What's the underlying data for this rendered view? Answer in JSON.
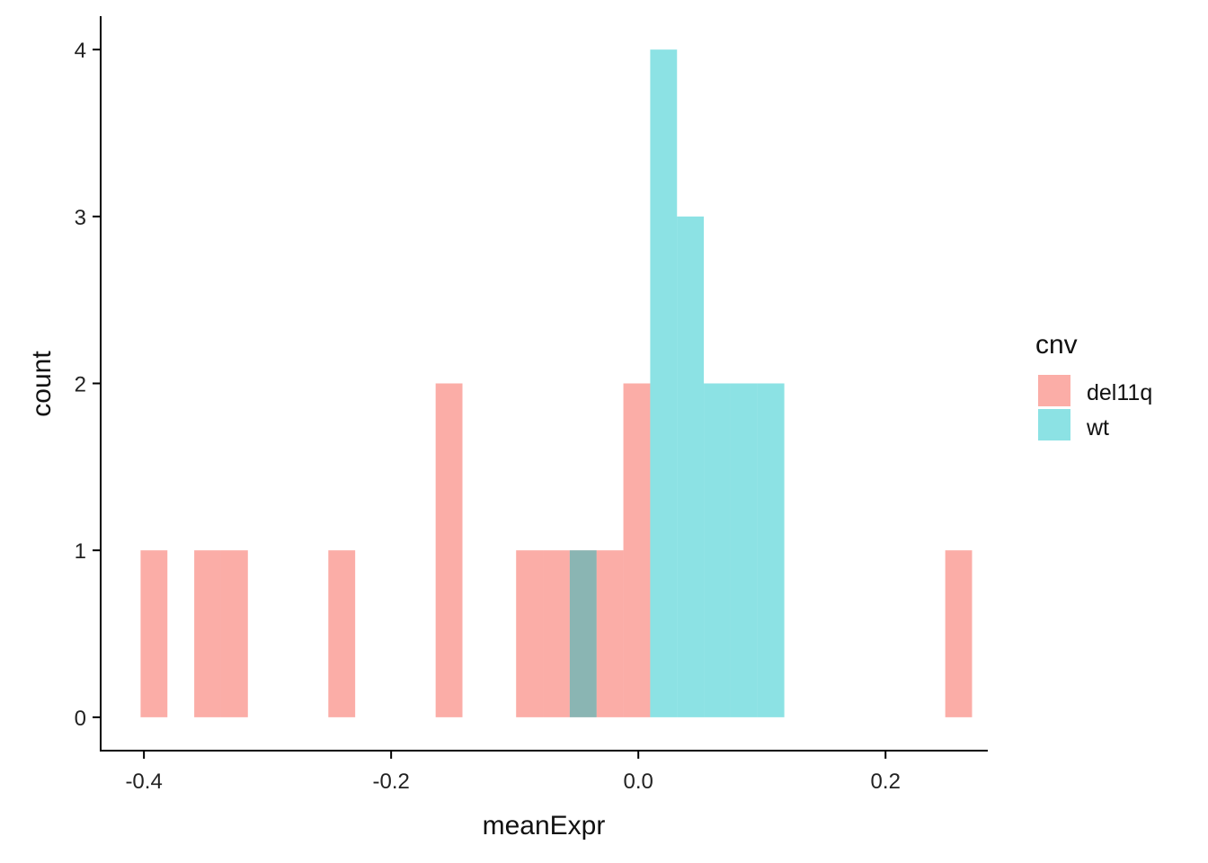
{
  "chart_data": {
    "type": "histogram",
    "xlabel": "meanExpr",
    "ylabel": "count",
    "x_ticks": [
      -0.4,
      -0.2,
      0.0,
      0.2
    ],
    "x_tick_labels": [
      "-0.4",
      "-0.2",
      "0.0",
      "0.2"
    ],
    "y_ticks": [
      0,
      1,
      2,
      3,
      4
    ],
    "y_tick_labels": [
      "0",
      "1",
      "2",
      "3",
      "4"
    ],
    "xlim": [
      -0.435,
      0.282
    ],
    "ylim": [
      -0.2,
      4.2
    ],
    "bin_width": 0.0217,
    "bin_start": -0.4027,
    "legend": {
      "title": "cnv",
      "position": "right"
    },
    "grid": false,
    "series": [
      {
        "name": "del11q",
        "color": "#F8766D",
        "counts": [
          1,
          0,
          1,
          1,
          0,
          0,
          0,
          1,
          0,
          0,
          0,
          2,
          0,
          0,
          1,
          1,
          1,
          1,
          2,
          0,
          0,
          0,
          0,
          0,
          0,
          0,
          0,
          0,
          0,
          0,
          1
        ]
      },
      {
        "name": "wt",
        "color": "#00BFC4",
        "counts": [
          0,
          0,
          0,
          0,
          0,
          0,
          0,
          0,
          0,
          0,
          0,
          0,
          0,
          0,
          0,
          0,
          1,
          0,
          0,
          4,
          3,
          2,
          2,
          2,
          0,
          0,
          0,
          0,
          0,
          0,
          0
        ]
      }
    ]
  }
}
